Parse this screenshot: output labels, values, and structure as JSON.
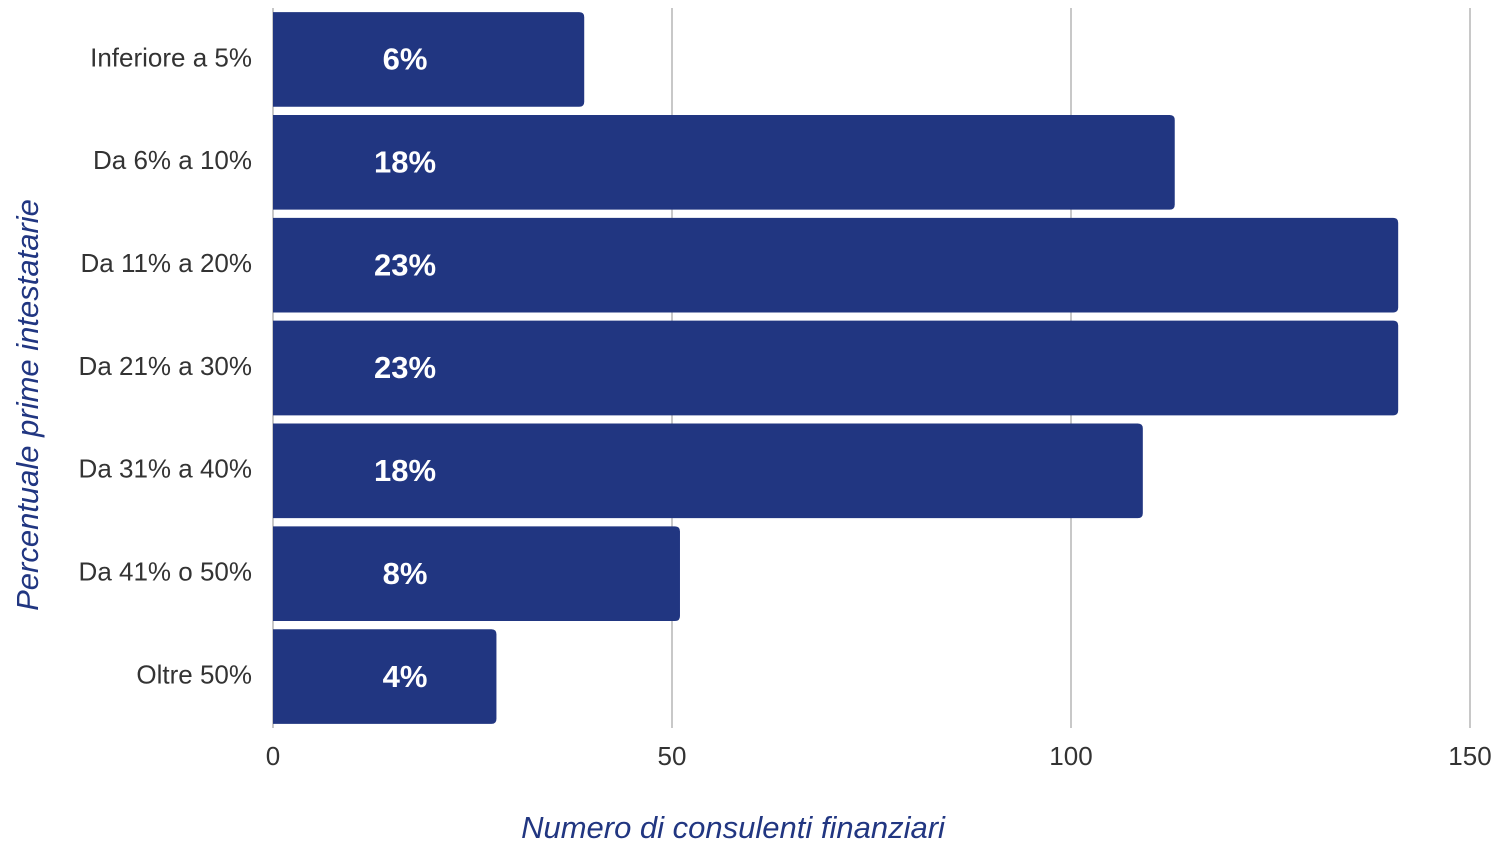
{
  "chart_data": {
    "type": "bar",
    "orientation": "horizontal",
    "categories": [
      "Inferiore a 5%",
      "Da 6% a 10%",
      "Da 11% a 20%",
      "Da 21% a 30%",
      "Da 31% a 40%",
      "Da 41% o 50%",
      "Oltre 50%"
    ],
    "values": [
      39,
      113,
      141,
      141,
      109,
      51,
      28
    ],
    "data_labels": [
      "6%",
      "18%",
      "23%",
      "23%",
      "18%",
      "8%",
      "4%"
    ],
    "color": "#213681",
    "xlim": [
      0,
      150
    ],
    "xticks": [
      0,
      50,
      100,
      150
    ],
    "grid": true,
    "x_label": "Numero di consulenti finanziari",
    "y_label": "Percentuale prime intestatarie"
  }
}
